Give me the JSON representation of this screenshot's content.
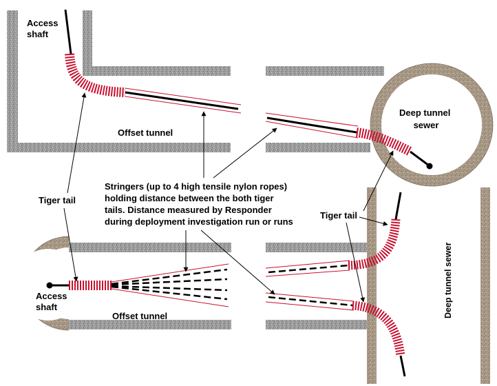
{
  "labels": {
    "access_shaft_top_line1": "Access",
    "access_shaft_top_line2": "shaft",
    "offset_tunnel_top": "Offset tunnel",
    "deep_tunnel_sewer_line1": "Deep tunnel",
    "deep_tunnel_sewer_line2": "sewer",
    "tiger_tail_left": "Tiger tail",
    "tiger_tail_right": "Tiger tail",
    "stringers_line1": "Stringers (up to 4 high tensile nylon ropes)",
    "stringers_line2": "holding distance between the both tiger",
    "stringers_line3": "tails. Distance measured by Responder",
    "stringers_line4": "during deployment investigation run or runs",
    "access_shaft_bottom_line1": "Access",
    "access_shaft_bottom_line2": "shaft",
    "offset_tunnel_bottom": "Offset tunnel",
    "deep_tunnel_sewer_vertical": "Deep tunnel sewer"
  },
  "colors": {
    "concrete": "#9a9a9a",
    "soil": "#a89886",
    "tiger_tail_red": "#c8102e",
    "line": "#000000"
  }
}
